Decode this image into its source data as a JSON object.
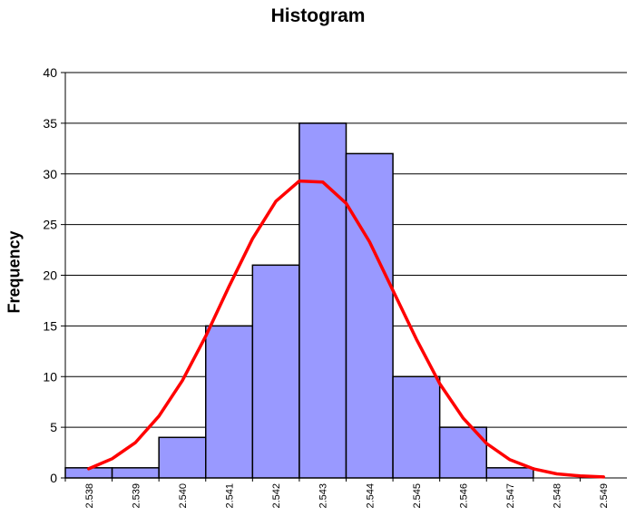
{
  "chart_data": {
    "type": "bar",
    "title": "Histogram",
    "xlabel": "",
    "ylabel": "Frequency",
    "categories": [
      "2.538",
      "2.539",
      "2.540",
      "2.541",
      "2.542",
      "2.543",
      "2.544",
      "2.545",
      "2.546",
      "2.547",
      "2.548",
      "2.549"
    ],
    "values": [
      1,
      1,
      4,
      15,
      21,
      35,
      32,
      10,
      5,
      1,
      0,
      0
    ],
    "ylim": [
      0,
      40
    ],
    "yticks": [
      0,
      5,
      10,
      15,
      20,
      25,
      30,
      35,
      40
    ],
    "grid": true,
    "bar_color": "#9999ff",
    "bar_edge_color": "#000000",
    "curve_color": "#ff0000",
    "curve": {
      "type": "line",
      "x": [
        2.538,
        2.5385,
        2.539,
        2.5395,
        2.54,
        2.5405,
        2.541,
        2.5415,
        2.542,
        2.5425,
        2.543,
        2.5435,
        2.544,
        2.5445,
        2.545,
        2.5455,
        2.546,
        2.5465,
        2.547,
        2.5475,
        2.548,
        2.5485,
        2.549
      ],
      "y": [
        0.9,
        1.9,
        3.5,
        6.1,
        9.6,
        14.0,
        18.9,
        23.6,
        27.3,
        29.3,
        29.2,
        27.1,
        23.3,
        18.5,
        13.7,
        9.3,
        5.9,
        3.4,
        1.8,
        0.9,
        0.4,
        0.2,
        0.1
      ]
    }
  }
}
